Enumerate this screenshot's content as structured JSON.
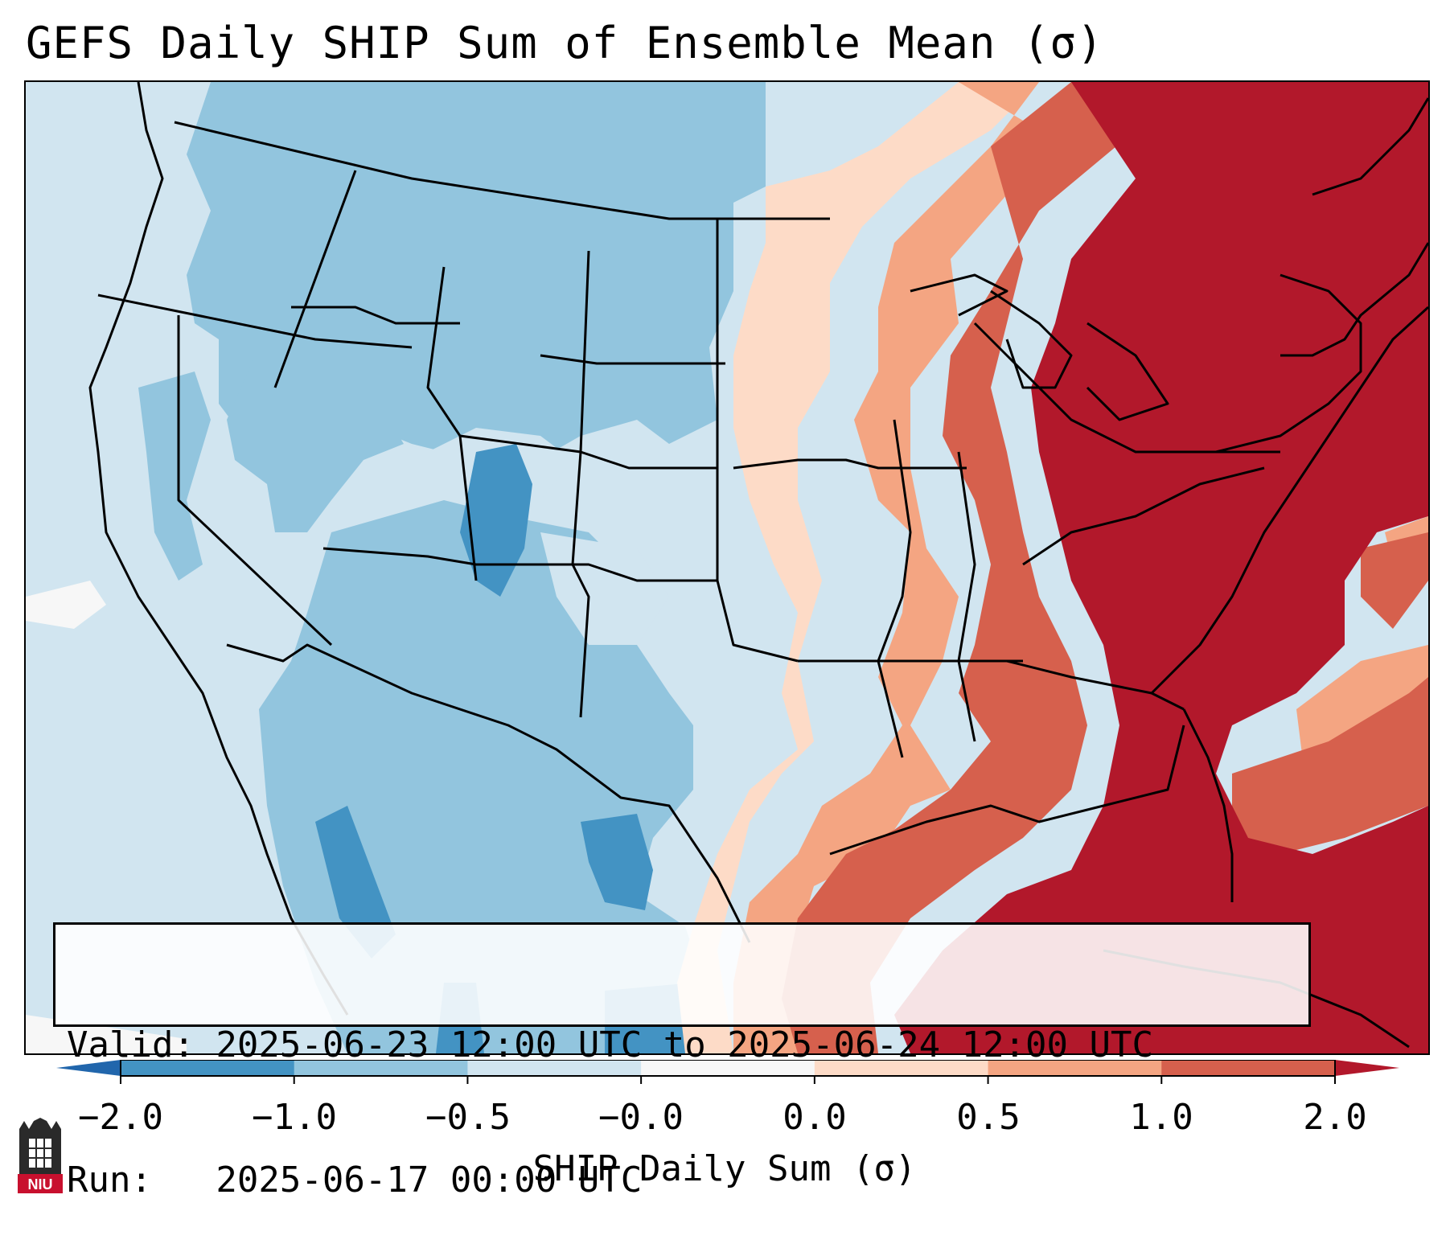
{
  "title": "GEFS Daily SHIP Sum of Ensemble Mean (σ)",
  "info": {
    "valid_line": "Valid: 2025-06-23 12:00 UTC to 2025-06-24 12:00 UTC",
    "run_line": "Run:   2025-06-17 00:00 UTC"
  },
  "colorbar": {
    "label": "SHIP Daily Sum (σ)",
    "ticks": [
      "−2.0",
      "−1.0",
      "−0.5",
      "−0.0",
      "0.0",
      "0.5",
      "1.0",
      "2.0"
    ],
    "bins": [
      {
        "range": "< -2.0",
        "color": "#2166ac"
      },
      {
        "range": "-2.0 to -1.0",
        "color": "#4393c3"
      },
      {
        "range": "-1.0 to -0.5",
        "color": "#92c5de"
      },
      {
        "range": "-0.5 to -0.0",
        "color": "#d1e5f0"
      },
      {
        "range": "-0.0 to 0.0",
        "color": "#f7f7f7"
      },
      {
        "range": "0.0 to 0.5",
        "color": "#fddbc7"
      },
      {
        "range": "0.5 to 1.0",
        "color": "#f4a582"
      },
      {
        "range": "1.0 to 2.0",
        "color": "#d6604d"
      },
      {
        "range": "> 2.0",
        "color": "#b2182b"
      }
    ]
  },
  "map": {
    "region": "Contiguous United States",
    "field": "SHIP daily sum anomaly",
    "pattern": "below-normal (blue) across the West and Plains; above-normal (red) across the Midwest, East and Gulf"
  },
  "logo": {
    "text": "NIU"
  }
}
